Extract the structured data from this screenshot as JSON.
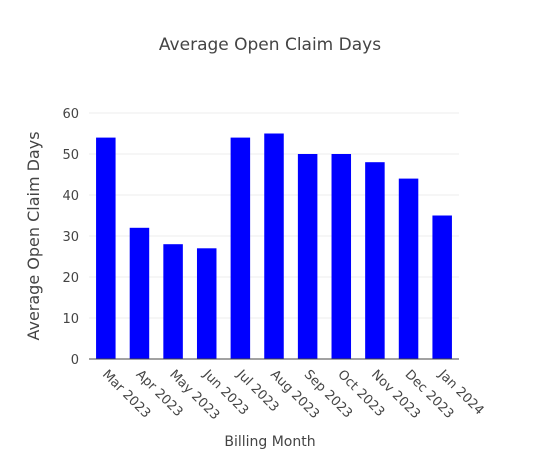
{
  "chart_data": {
    "type": "bar",
    "title": "Average Open Claim Days",
    "x_label": "Billing Month",
    "y_label": "Average Open Claim Days",
    "categories": [
      "Mar 2023",
      "Apr 2023",
      "May 2023",
      "Jun 2023",
      "Jul 2023",
      "Aug 2023",
      "Sep 2023",
      "Oct 2023",
      "Nov 2023",
      "Dec 2023",
      "Jan 2024"
    ],
    "values": [
      54,
      32,
      28,
      27,
      54,
      55,
      50,
      50,
      48,
      44,
      35
    ],
    "color": "#0000ff",
    "ylim": [
      0,
      60
    ],
    "yticks": [
      0,
      10,
      20,
      30,
      40,
      50,
      60
    ],
    "grid": true
  }
}
